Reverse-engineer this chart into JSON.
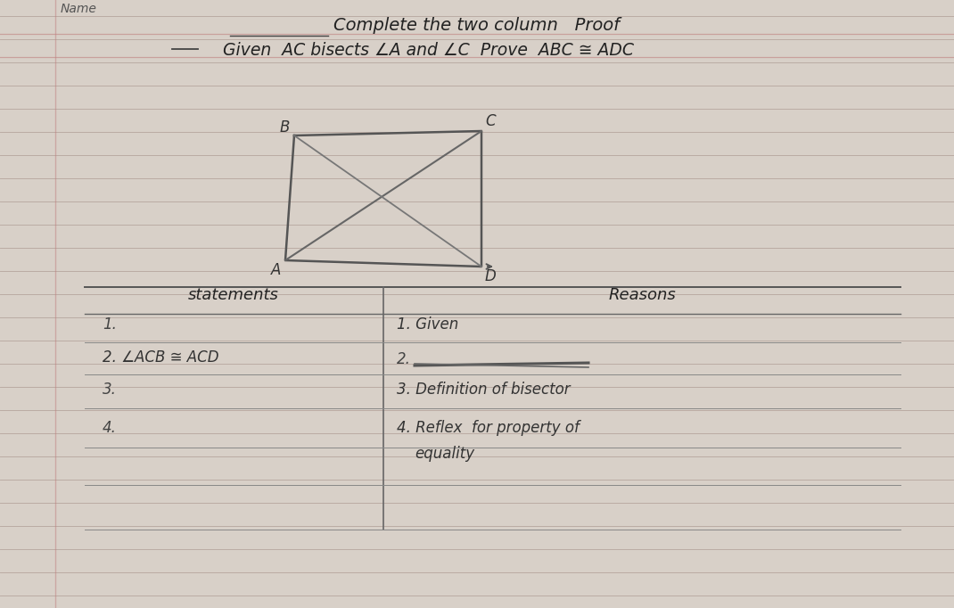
{
  "paper_color": "#d8d0c8",
  "line_color": "#b8a8a0",
  "red_line_color": "#c08080",
  "text_color": "#333333",
  "dark_text": "#222222",
  "name_label": "Name",
  "title_line1": "Complete the two column   Proof",
  "title_line2": "Given  AC bisects ∠A and ∠C  Prove  ABC ≅ ADC",
  "statements_header": "statements",
  "reasons_header": "Reasons",
  "row1_stmt": "1.",
  "row1_reason": "1. Given",
  "row2_stmt": "2. ∠ACB ≅ ACD",
  "row2_reason": "2.",
  "row3_stmt": "3.",
  "row3_reason": "3. Definition of bisector",
  "row4_stmt": "4.",
  "row4_reason_a": "4. Reflex  for property of",
  "row4_reason_b": "equality",
  "fig_width": 10.7,
  "fig_height": 6.82,
  "dpi": 100
}
